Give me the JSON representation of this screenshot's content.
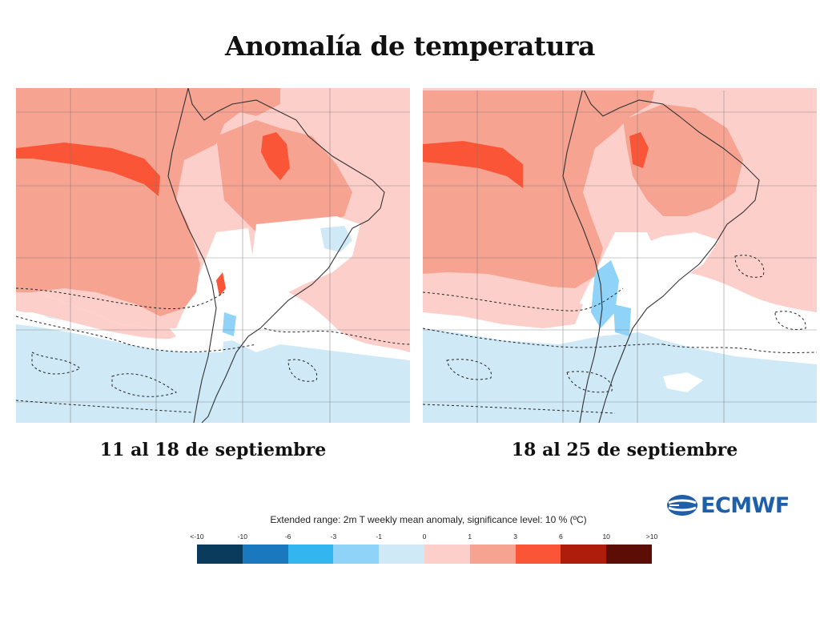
{
  "title": "Anomalía de temperatura",
  "maps": [
    {
      "period": "11 al 18 de septiembre"
    },
    {
      "period": "18 al 25 de septiembre"
    }
  ],
  "logo": {
    "text": "ECMWF",
    "color": "#1f5fa8"
  },
  "legend": {
    "title": "Extended range: 2m T weekly mean anomaly, significance level: 10 % (ºC)",
    "ticks": [
      "<-10",
      "-10",
      "-6",
      "-3",
      "-1",
      "0",
      "1",
      "3",
      "6",
      "10",
      ">10"
    ],
    "colors": [
      "#0a3a5c",
      "#1a78be",
      "#33b5f0",
      "#8fd3f8",
      "#cfe9f7",
      "#fdcfcb",
      "#f7a392",
      "#fa5536",
      "#ae1d0c",
      "#5c0d05"
    ]
  }
}
